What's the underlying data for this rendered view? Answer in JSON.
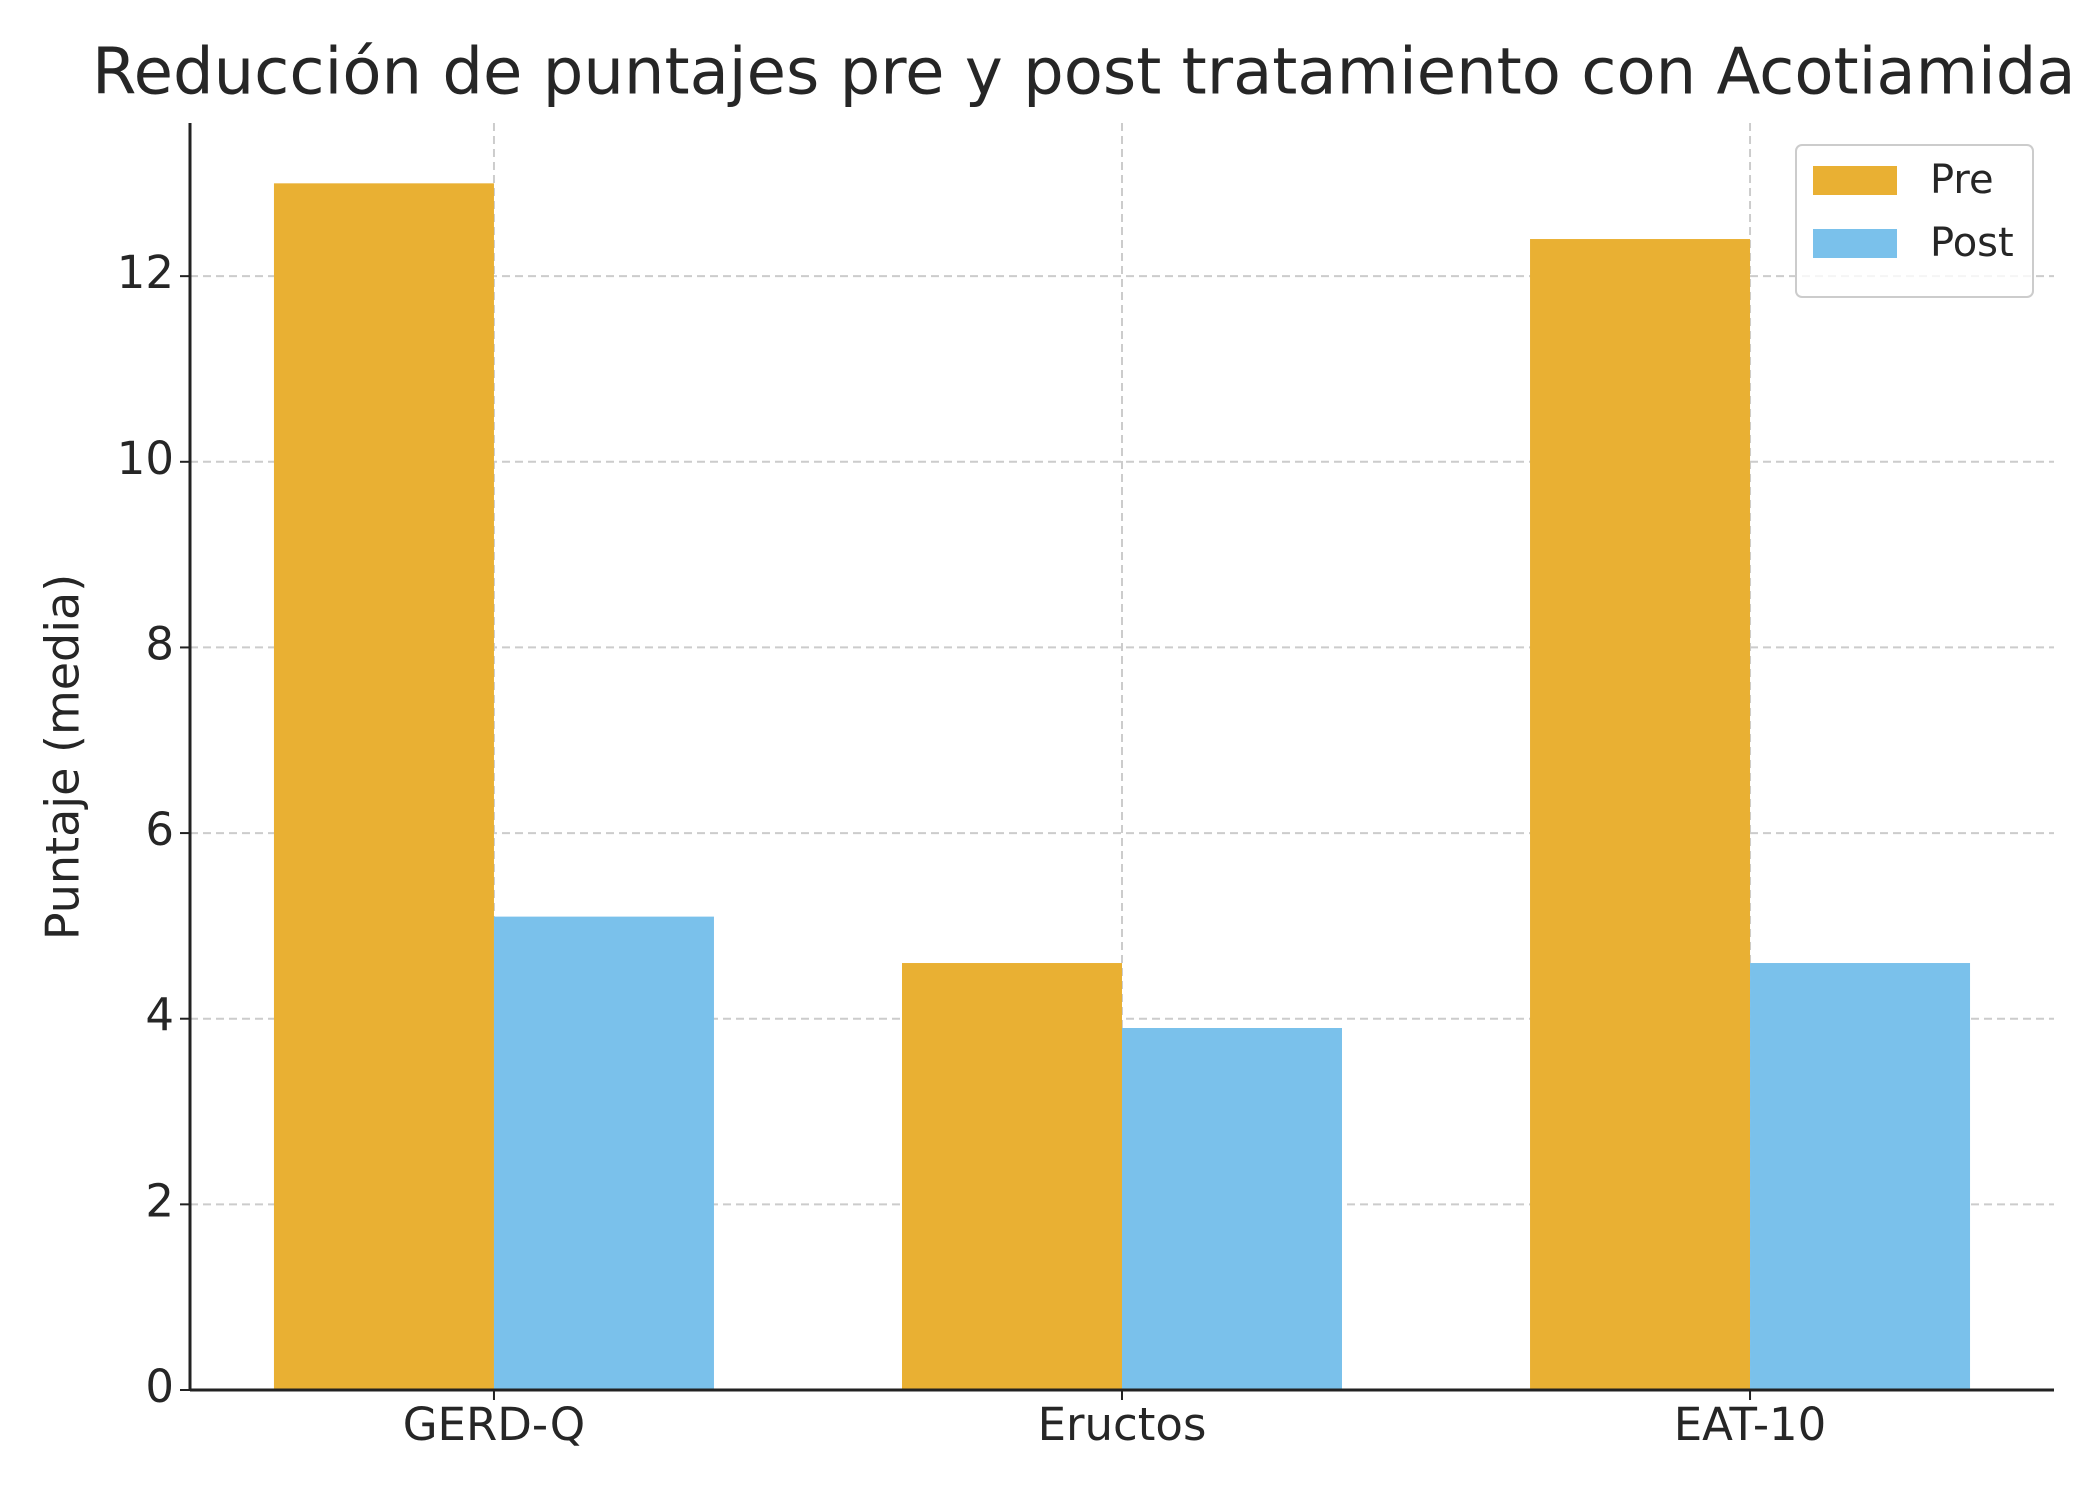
{
  "chart_data": {
    "type": "bar",
    "title": "Reducción de puntajes pre y post tratamiento con Acotiamida",
    "y_label": "Puntaje (media)",
    "categories": [
      "GERD-Q",
      "Eructos",
      "EAT-10"
    ],
    "series": [
      {
        "name": "Pre",
        "color": "#e9b033",
        "values": [
          13.0,
          4.6,
          12.4
        ]
      },
      {
        "name": "Post",
        "color": "#7ac1eb",
        "values": [
          5.1,
          3.9,
          4.6
        ]
      }
    ],
    "ylim": [
      0,
      13.65
    ],
    "yticks": [
      0,
      2,
      4,
      6,
      8,
      10,
      12
    ],
    "grid": true,
    "legend": "upper right"
  }
}
